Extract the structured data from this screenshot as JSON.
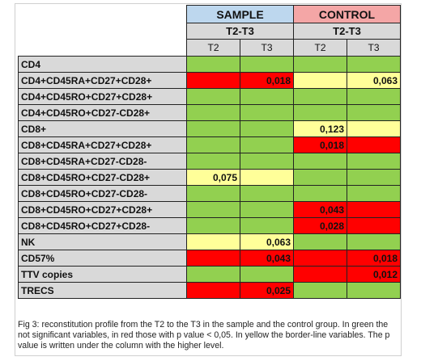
{
  "headers": {
    "sample": "SAMPLE",
    "control": "CONTROL",
    "sample_range": "T2-T3",
    "control_range": "T2-T3",
    "t2": "T2",
    "t3": "T3"
  },
  "colors": {
    "green": "#92d050",
    "red": "#ff0000",
    "yellow": "#ffff99",
    "sample_header": "#bdd7ee",
    "control_header": "#f4a6a6",
    "label_bg": "#d9d9d9"
  },
  "rows": [
    {
      "label": "CD4",
      "cells": [
        {
          "c": "g",
          "v": ""
        },
        {
          "c": "g",
          "v": ""
        },
        {
          "c": "g",
          "v": ""
        },
        {
          "c": "g",
          "v": ""
        }
      ]
    },
    {
      "label": "CD4+CD45RA+CD27+CD28+",
      "cells": [
        {
          "c": "r",
          "v": ""
        },
        {
          "c": "r",
          "v": "0,018"
        },
        {
          "c": "y",
          "v": ""
        },
        {
          "c": "y",
          "v": "0,063"
        }
      ]
    },
    {
      "label": "CD4+CD45RO+CD27+CD28+",
      "cells": [
        {
          "c": "g",
          "v": ""
        },
        {
          "c": "g",
          "v": ""
        },
        {
          "c": "g",
          "v": ""
        },
        {
          "c": "g",
          "v": ""
        }
      ]
    },
    {
      "label": "CD4+CD45RO+CD27-CD28+",
      "cells": [
        {
          "c": "g",
          "v": ""
        },
        {
          "c": "g",
          "v": ""
        },
        {
          "c": "g",
          "v": ""
        },
        {
          "c": "g",
          "v": ""
        }
      ]
    },
    {
      "label": "CD8+",
      "cells": [
        {
          "c": "g",
          "v": ""
        },
        {
          "c": "g",
          "v": ""
        },
        {
          "c": "y",
          "v": "0,123"
        },
        {
          "c": "y",
          "v": ""
        }
      ]
    },
    {
      "label": "CD8+CD45RA+CD27+CD28+",
      "cells": [
        {
          "c": "g",
          "v": ""
        },
        {
          "c": "g",
          "v": ""
        },
        {
          "c": "r",
          "v": "0,018"
        },
        {
          "c": "r",
          "v": ""
        }
      ]
    },
    {
      "label": "CD8+CD45RA+CD27-CD28-",
      "cells": [
        {
          "c": "g",
          "v": ""
        },
        {
          "c": "g",
          "v": ""
        },
        {
          "c": "g",
          "v": ""
        },
        {
          "c": "g",
          "v": ""
        }
      ]
    },
    {
      "label": "CD8+CD45RO+CD27-CD28+",
      "cells": [
        {
          "c": "y",
          "v": "0,075"
        },
        {
          "c": "y",
          "v": ""
        },
        {
          "c": "g",
          "v": ""
        },
        {
          "c": "g",
          "v": ""
        }
      ]
    },
    {
      "label": "CD8+CD45RO+CD27-CD28-",
      "cells": [
        {
          "c": "g",
          "v": ""
        },
        {
          "c": "g",
          "v": ""
        },
        {
          "c": "g",
          "v": ""
        },
        {
          "c": "g",
          "v": ""
        }
      ]
    },
    {
      "label": "CD8+CD45RO+CD27+CD28+",
      "cells": [
        {
          "c": "g",
          "v": ""
        },
        {
          "c": "g",
          "v": ""
        },
        {
          "c": "r",
          "v": "0,043"
        },
        {
          "c": "r",
          "v": ""
        }
      ]
    },
    {
      "label": "CD8+CD45RO+CD27+CD28-",
      "cells": [
        {
          "c": "g",
          "v": ""
        },
        {
          "c": "g",
          "v": ""
        },
        {
          "c": "r",
          "v": "0,028"
        },
        {
          "c": "r",
          "v": ""
        }
      ]
    },
    {
      "label": "NK",
      "cells": [
        {
          "c": "y",
          "v": ""
        },
        {
          "c": "y",
          "v": "0,063"
        },
        {
          "c": "g",
          "v": ""
        },
        {
          "c": "g",
          "v": ""
        }
      ]
    },
    {
      "label": "CD57%",
      "cells": [
        {
          "c": "r",
          "v": ""
        },
        {
          "c": "r",
          "v": "0,043"
        },
        {
          "c": "r",
          "v": ""
        },
        {
          "c": "r",
          "v": "0,018"
        }
      ]
    },
    {
      "label": "TTV copies",
      "cells": [
        {
          "c": "g",
          "v": ""
        },
        {
          "c": "g",
          "v": ""
        },
        {
          "c": "r",
          "v": ""
        },
        {
          "c": "r",
          "v": "0,012"
        }
      ]
    },
    {
      "label": "TRECS",
      "cells": [
        {
          "c": "r",
          "v": ""
        },
        {
          "c": "r",
          "v": "0,025"
        },
        {
          "c": "g",
          "v": ""
        },
        {
          "c": "g",
          "v": ""
        }
      ]
    }
  ],
  "caption": "Fig 3: reconstitution profile from the T2 to the T3 in the sample and the control group. In green the not significant variables, in red those with p value < 0,05. In yellow the border-line variables. The p value is written under the column with the higher level."
}
